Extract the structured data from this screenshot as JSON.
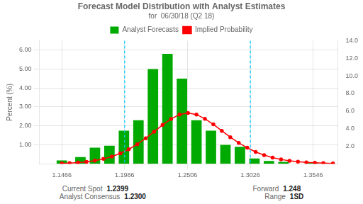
{
  "chart_data": {
    "type": "bar",
    "title": "Forecast Model Distribution with Analyst Estimates",
    "subtitle": "for  06/30/18 (Q2 18)",
    "ylabel": "Percent (%)",
    "xlim": [
      1.128,
      1.375
    ],
    "xticks": [
      1.1466,
      1.1986,
      1.2506,
      1.3026,
      1.3546
    ],
    "ylim": [
      0,
      6.5
    ],
    "yticks": [
      {
        "value": 1.0,
        "label": "1.00"
      },
      {
        "value": 2.0,
        "label": "2.00"
      },
      {
        "value": 3.0,
        "label": "3.00"
      },
      {
        "value": 4.0,
        "label": "4.00"
      },
      {
        "value": 5.0,
        "label": "5.00"
      },
      {
        "value": 6.0,
        "label": "6.00"
      }
    ],
    "y2lim": [
      0,
      14.0
    ],
    "y2ticks": [
      {
        "value": 2.0,
        "label": "2.0"
      },
      {
        "value": 4.0,
        "label": "4.0"
      },
      {
        "value": 6.0,
        "label": "6.0"
      },
      {
        "value": 8.0,
        "label": "8.0"
      },
      {
        "value": 10.0,
        "label": "10.0"
      },
      {
        "value": 12.0,
        "label": "12.0"
      },
      {
        "value": 14.0,
        "label": "14.0"
      }
    ],
    "grid": true,
    "legend": "top",
    "series": [
      {
        "name": "Analyst Forecasts",
        "type": "bar",
        "color": "#00AA00",
        "x": [
          1.1466,
          1.162,
          1.174,
          1.186,
          1.198,
          1.21,
          1.222,
          1.234,
          1.246,
          1.258,
          1.27,
          1.282,
          1.294,
          1.306,
          1.318,
          1.33,
          1.3546
        ],
        "values": [
          0.18,
          0.35,
          0.85,
          0.95,
          1.75,
          2.3,
          5.0,
          5.8,
          4.5,
          2.3,
          1.75,
          1.0,
          0.9,
          0.28,
          0.15,
          0.1,
          0.05
        ]
      },
      {
        "name": "Implied Probability",
        "type": "line",
        "color": "#FF0000",
        "marker": "circle",
        "line_style": "solid",
        "axis": "y2",
        "x": [
          1.1466,
          1.153,
          1.16,
          1.167,
          1.174,
          1.181,
          1.188,
          1.195,
          1.202,
          1.209,
          1.216,
          1.223,
          1.23,
          1.237,
          1.244,
          1.251,
          1.258,
          1.265,
          1.272,
          1.279,
          1.286,
          1.293,
          1.3,
          1.307,
          1.314,
          1.321,
          1.328,
          1.335,
          1.342,
          1.349,
          1.356,
          1.363,
          1.371
        ],
        "values": [
          0.04,
          0.08,
          0.14,
          0.22,
          0.35,
          0.55,
          0.82,
          1.18,
          1.65,
          2.22,
          2.9,
          3.65,
          4.42,
          5.1,
          5.6,
          5.78,
          5.6,
          5.12,
          4.48,
          3.75,
          3.02,
          2.38,
          1.82,
          1.35,
          0.98,
          0.7,
          0.49,
          0.34,
          0.23,
          0.16,
          0.11,
          0.07,
          0.04
        ]
      }
    ],
    "vlines": [
      {
        "x": 1.1986,
        "color": "#00CCFF",
        "line_style": "dashed"
      },
      {
        "x": 1.3026,
        "color": "#00CCFF",
        "line_style": "dashed"
      }
    ],
    "annotations": [
      "Current Spot",
      "1.2399",
      "Forward",
      "1.248",
      "Analyst Consensus",
      "1.2300",
      "Range",
      "1SD"
    ]
  }
}
